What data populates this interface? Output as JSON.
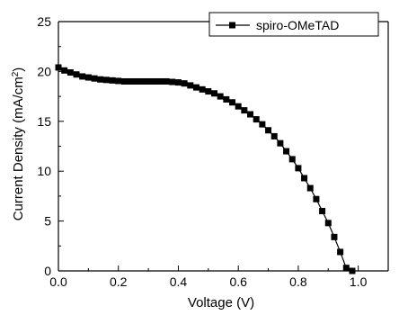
{
  "chart_data": {
    "type": "line",
    "title": "",
    "xlabel": "Voltage (V)",
    "ylabel_main": "Current Density (mA/cm",
    "ylabel_sup": "2",
    "ylabel_close": ")",
    "xlim": [
      0.0,
      1.1
    ],
    "ylim": [
      0,
      25
    ],
    "x_ticks": [
      "0.0",
      "0.2",
      "0.4",
      "0.6",
      "0.8",
      "1.0"
    ],
    "y_ticks": [
      "0",
      "5",
      "10",
      "15",
      "20",
      "25"
    ],
    "grid": false,
    "legend_position": "top-right",
    "marker": "square",
    "series": [
      {
        "name": "spiro-OMeTAD",
        "color": "#000000",
        "x": [
          0.0,
          0.02,
          0.04,
          0.06,
          0.08,
          0.1,
          0.12,
          0.14,
          0.16,
          0.18,
          0.2,
          0.22,
          0.24,
          0.26,
          0.28,
          0.3,
          0.32,
          0.34,
          0.36,
          0.38,
          0.4,
          0.42,
          0.44,
          0.46,
          0.48,
          0.5,
          0.52,
          0.54,
          0.56,
          0.58,
          0.6,
          0.62,
          0.64,
          0.66,
          0.68,
          0.7,
          0.72,
          0.74,
          0.76,
          0.78,
          0.8,
          0.82,
          0.84,
          0.86,
          0.88,
          0.9,
          0.92,
          0.94,
          0.96,
          0.98
        ],
        "y": [
          20.4,
          20.1,
          19.9,
          19.7,
          19.5,
          19.4,
          19.3,
          19.2,
          19.15,
          19.1,
          19.05,
          19.0,
          19.0,
          19.0,
          19.0,
          19.0,
          19.0,
          19.0,
          19.0,
          18.95,
          18.9,
          18.8,
          18.6,
          18.4,
          18.2,
          18.0,
          17.8,
          17.5,
          17.2,
          16.9,
          16.5,
          16.1,
          15.7,
          15.2,
          14.7,
          14.1,
          13.5,
          12.8,
          12.0,
          11.2,
          10.3,
          9.3,
          8.3,
          7.2,
          6.0,
          4.8,
          3.4,
          1.9,
          0.3,
          0.0
        ]
      }
    ]
  }
}
